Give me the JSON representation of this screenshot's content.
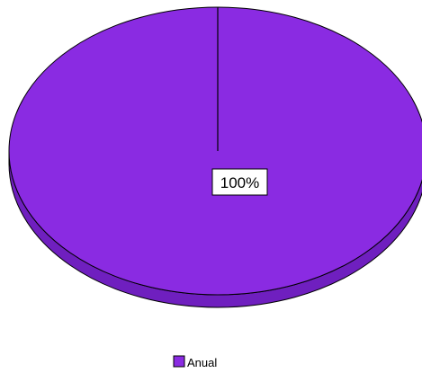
{
  "chart_data": {
    "type": "pie",
    "style": "3d",
    "slices": [
      {
        "label": "Anual",
        "value": 100,
        "percent_label": "100%",
        "color": "#8a2be2"
      }
    ],
    "legend": {
      "position": "bottom",
      "entries": [
        "Anual"
      ]
    },
    "colors": {
      "slice": "#8a2be2",
      "slice_side": "#6f1fbf",
      "outline": "#000000"
    }
  }
}
